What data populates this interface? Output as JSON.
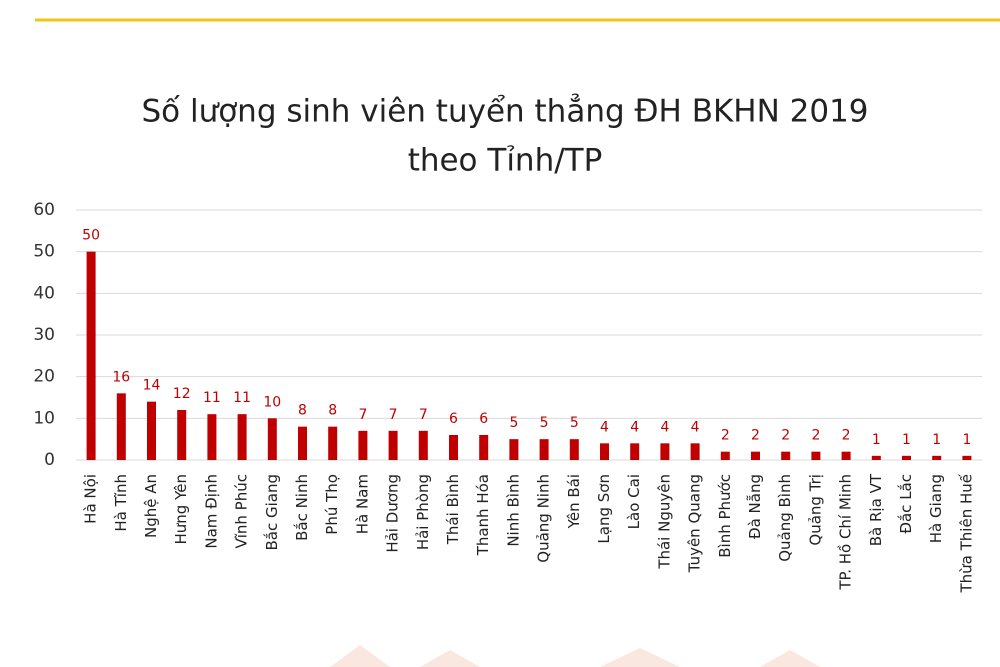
{
  "chart_data": {
    "type": "bar",
    "title": [
      "Số lượng sinh viên tuyển thẳng ĐH BKHN 2019",
      "theo Tỉnh/TP"
    ],
    "categories": [
      "Hà Nội",
      "Hà Tĩnh",
      "Nghệ An",
      "Hưng Yên",
      "Nam Định",
      "Vĩnh Phúc",
      "Bắc Giang",
      "Bắc Ninh",
      "Phú Thọ",
      "Hà Nam",
      "Hải Dương",
      "Hải Phòng",
      "Thái Bình",
      "Thanh Hóa",
      "Ninh Bình",
      "Quảng Ninh",
      "Yên Bái",
      "Lạng Sơn",
      "Lào Cai",
      "Thái Nguyên",
      "Tuyên Quang",
      "Bình Phước",
      "Đà Nẵng",
      "Quảng Bình",
      "Quảng Trị",
      "TP. Hồ Chí Minh",
      "Bà Rịa VT",
      "Đắc Lắc",
      "Hà Giang",
      "Thừa Thiên Huế"
    ],
    "values": [
      50,
      16,
      14,
      12,
      11,
      11,
      10,
      8,
      8,
      7,
      7,
      7,
      6,
      6,
      5,
      5,
      5,
      4,
      4,
      4,
      4,
      2,
      2,
      2,
      2,
      2,
      1,
      1,
      1,
      1
    ],
    "color": "#c00000",
    "ylim": [
      0,
      60
    ],
    "yticks": [
      0,
      10,
      20,
      30,
      40,
      50,
      60
    ],
    "grid": true
  }
}
